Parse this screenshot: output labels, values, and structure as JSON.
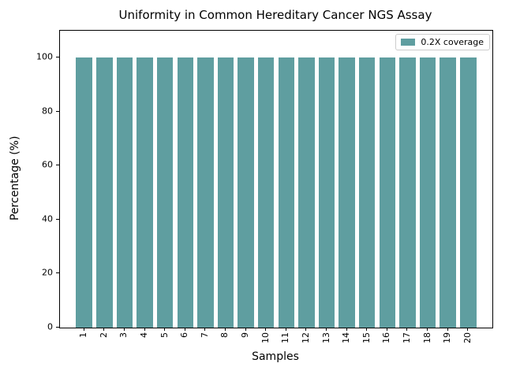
{
  "figure": {
    "title": "Uniformity in Common Hereditary Cancer NGS Assay"
  },
  "chart_data": {
    "type": "bar",
    "title": "Uniformity in Common Hereditary Cancer NGS Assay",
    "xlabel": "Samples",
    "ylabel": "Percentage (%)",
    "categories": [
      "1",
      "2",
      "3",
      "4",
      "5",
      "6",
      "7",
      "8",
      "9",
      "10",
      "11",
      "12",
      "13",
      "14",
      "15",
      "16",
      "17",
      "18",
      "19",
      "20"
    ],
    "series": [
      {
        "name": "0.2X coverage",
        "color": "#5f9ea0",
        "values": [
          100,
          100,
          100,
          100,
          100,
          100,
          100,
          100,
          100,
          100,
          100,
          100,
          100,
          100,
          100,
          100,
          100,
          100,
          100,
          100
        ]
      }
    ],
    "ylim": [
      0,
      110
    ],
    "yticks": [
      0,
      20,
      40,
      60,
      80,
      100
    ],
    "xtick_rotation": 90,
    "grid": false,
    "legend_position": "upper right"
  },
  "legend": {
    "items": [
      {
        "label": "0.2X coverage",
        "color": "#5f9ea0"
      }
    ]
  },
  "colors": {
    "bar": "#5f9ea0",
    "text": "#000000",
    "spine": "#000000",
    "legend_border": "#cccccc",
    "background": "#ffffff"
  }
}
